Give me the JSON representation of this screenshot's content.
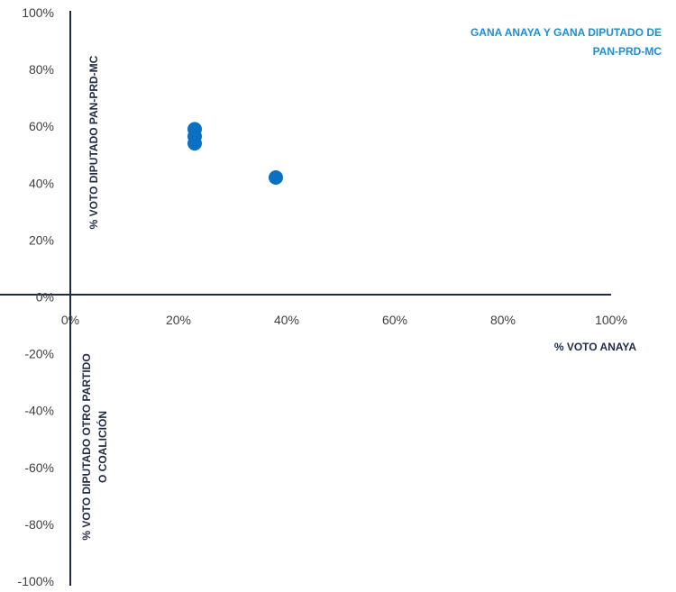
{
  "chart_data": {
    "type": "scatter",
    "title": "",
    "xlim": [
      0,
      1
    ],
    "ylim": [
      -1,
      1
    ],
    "x_ticks": [
      "0%",
      "20%",
      "40%",
      "60%",
      "80%",
      "100%"
    ],
    "y_ticks": [
      "100%",
      "80%",
      "60%",
      "40%",
      "20%",
      "0%",
      "-20%",
      "-40%",
      "-60%",
      "-80%",
      "-100%"
    ],
    "xlabel": "% VOTO ANAYA",
    "ylabel_top": "% VOTO DIPUTADO PAN-PRD-MC",
    "ylabel_bottom": [
      "% VOTO DIPUTADO OTRO PARTIDO",
      "O COALICIÓN"
    ],
    "annotation": [
      "GANA ANAYA Y GANA DIPUTADO DE",
      "PAN-PRD-MC"
    ],
    "series": [
      {
        "points": [
          {
            "x": 0.23,
            "y": 0.59
          },
          {
            "x": 0.23,
            "y": 0.565
          },
          {
            "x": 0.23,
            "y": 0.54
          },
          {
            "x": 0.38,
            "y": 0.42
          }
        ]
      }
    ],
    "grid": false
  },
  "colors": {
    "point": "#0a70c2",
    "axis": "#1f2a44",
    "annotation": "#1a8fd6",
    "tick": "#404040"
  }
}
